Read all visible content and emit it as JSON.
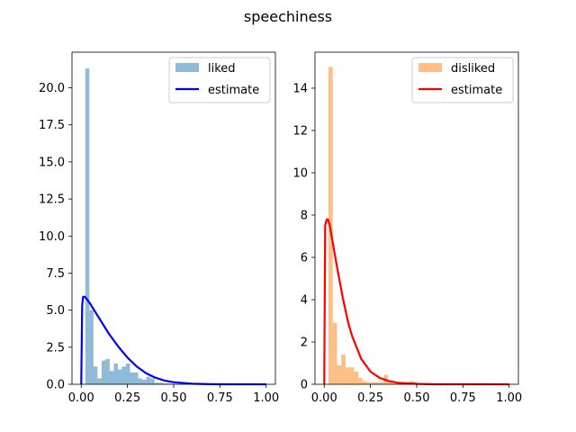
{
  "chart_data": {
    "title": "speechiness",
    "panels": [
      {
        "type": "histogram+line",
        "xlim": [
          -0.05,
          1.05
        ],
        "ylim": [
          0,
          22.4
        ],
        "xticks": [
          0.0,
          0.25,
          0.5,
          0.75,
          1.0
        ],
        "xtick_labels": [
          "0.00",
          "0.25",
          "0.50",
          "0.75",
          "1.00"
        ],
        "yticks": [
          0,
          2.5,
          5,
          7.5,
          10,
          12.5,
          15,
          17.5,
          20
        ],
        "ytick_labels": [
          "0.0",
          "2.5",
          "5.0",
          "7.5",
          "10.0",
          "12.5",
          "15.0",
          "17.5",
          "20.0"
        ],
        "legend_position": "top-right",
        "histogram": {
          "name": "liked",
          "color": "#1f77b4",
          "alpha": 0.5,
          "bin_edges": [
            0.022,
            0.044,
            0.066,
            0.088,
            0.11,
            0.132,
            0.154,
            0.176,
            0.198,
            0.22,
            0.242,
            0.264,
            0.286,
            0.308,
            0.33,
            0.352,
            0.374,
            0.396,
            0.418,
            0.44,
            0.462,
            0.484,
            0.506
          ],
          "values": [
            21.3,
            5.0,
            1.2,
            0.4,
            1.6,
            1.7,
            0.9,
            1.4,
            1.0,
            1.2,
            1.4,
            0.8,
            0.8,
            0.4,
            0.3,
            0.5,
            0.4,
            0.1,
            0.1,
            0.05,
            0.05,
            0.02
          ]
        },
        "estimate": {
          "name": "estimate",
          "color": "#0000ff",
          "x": [
            0.0,
            0.005,
            0.01,
            0.02,
            0.03,
            0.05,
            0.08,
            0.1,
            0.15,
            0.2,
            0.25,
            0.3,
            0.35,
            0.4,
            0.45,
            0.5,
            0.6,
            0.7,
            0.8,
            1.0
          ],
          "y": [
            0.0,
            5.3,
            5.9,
            5.9,
            5.75,
            5.4,
            4.8,
            4.4,
            3.4,
            2.55,
            1.8,
            1.2,
            0.75,
            0.45,
            0.25,
            0.14,
            0.04,
            0.01,
            0.0,
            0.0
          ]
        }
      },
      {
        "type": "histogram+line",
        "xlim": [
          -0.05,
          1.05
        ],
        "ylim": [
          0,
          15.7
        ],
        "xticks": [
          0.0,
          0.25,
          0.5,
          0.75,
          1.0
        ],
        "xtick_labels": [
          "0.00",
          "0.25",
          "0.50",
          "0.75",
          "1.00"
        ],
        "yticks": [
          0,
          2,
          4,
          6,
          8,
          10,
          12,
          14
        ],
        "ytick_labels": [
          "0",
          "2",
          "4",
          "6",
          "8",
          "10",
          "12",
          "14"
        ],
        "legend_position": "top-right",
        "histogram": {
          "name": "disliked",
          "color": "#ff7f0e",
          "alpha": 0.5,
          "bin_edges": [
            0.0,
            0.023,
            0.046,
            0.069,
            0.092,
            0.115,
            0.138,
            0.161,
            0.184,
            0.207,
            0.23,
            0.253,
            0.276,
            0.299,
            0.322,
            0.345,
            0.368,
            0.391,
            0.414,
            0.437,
            0.46,
            0.483,
            0.506,
            0.529,
            0.89,
            0.91
          ],
          "values": [
            0.0,
            15.0,
            2.9,
            0.9,
            1.4,
            0.8,
            0.8,
            0.6,
            0.3,
            0.15,
            0.1,
            0.1,
            0.1,
            0.1,
            0.45,
            0.1,
            0.05,
            0.05,
            0.05,
            0.05,
            0.15,
            0.1,
            0.05,
            0.05,
            0.05
          ]
        },
        "estimate": {
          "name": "estimate",
          "color": "#ff0000",
          "x": [
            0.0,
            0.005,
            0.01,
            0.015,
            0.02,
            0.03,
            0.04,
            0.05,
            0.07,
            0.1,
            0.13,
            0.15,
            0.2,
            0.25,
            0.3,
            0.35,
            0.4,
            0.5,
            0.6,
            0.8,
            1.0
          ],
          "y": [
            0.0,
            7.5,
            7.7,
            7.8,
            7.8,
            7.5,
            7.0,
            6.5,
            5.5,
            4.1,
            2.9,
            2.3,
            1.2,
            0.6,
            0.3,
            0.15,
            0.07,
            0.02,
            0.0,
            0.0,
            0.0
          ]
        }
      }
    ]
  }
}
